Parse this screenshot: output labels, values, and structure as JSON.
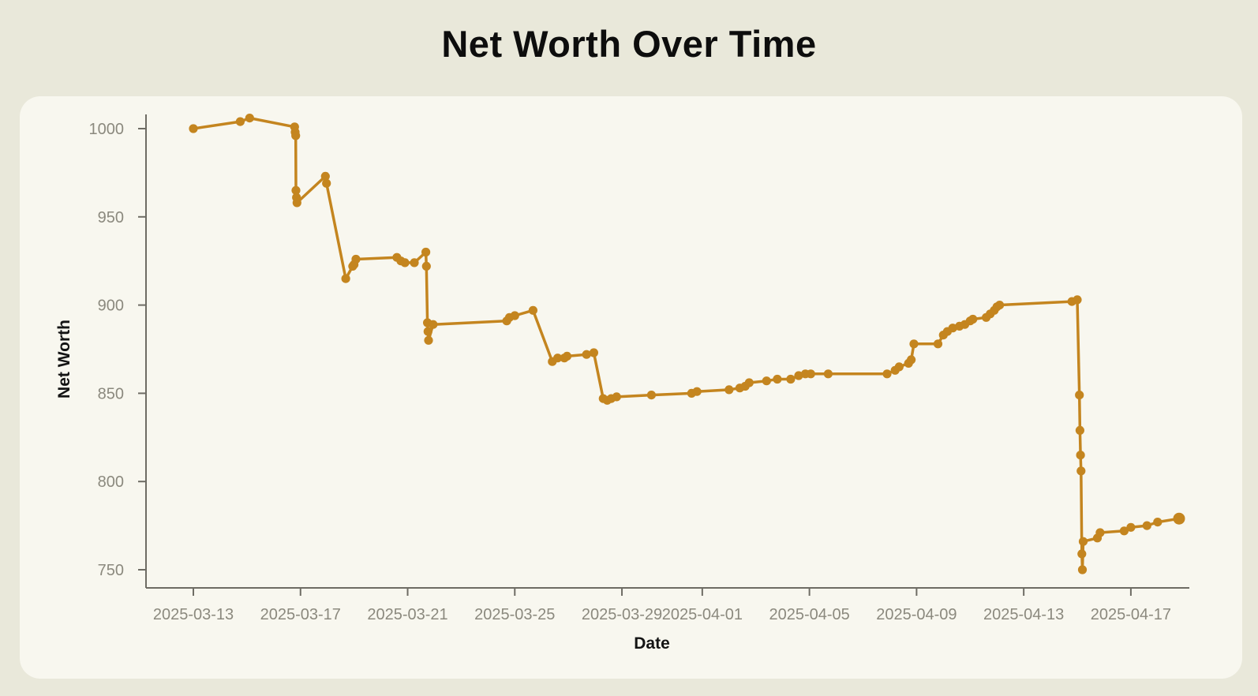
{
  "page": {
    "background_color": "#e9e8da",
    "card_color": "#f8f7ef"
  },
  "chart_data": {
    "type": "line",
    "title": "Net Worth Over Time",
    "xlabel": "Date",
    "ylabel": "Net Worth",
    "line_color": "#c4851f",
    "axis_color": "#6e6c64",
    "tick_label_color": "#8b897e",
    "grid": false,
    "legend": false,
    "ylim": [
      740,
      1012
    ],
    "y_ticks": [
      1000,
      950,
      900,
      850,
      800,
      750
    ],
    "x_ticks": [
      {
        "t": 0,
        "label": "2025-03-13"
      },
      {
        "t": 4,
        "label": "2025-03-17"
      },
      {
        "t": 8,
        "label": "2025-03-21"
      },
      {
        "t": 12,
        "label": "2025-03-25"
      },
      {
        "t": 16,
        "label": "2025-03-29"
      },
      {
        "t": 19,
        "label": "2025-04-01"
      },
      {
        "t": 23,
        "label": "2025-04-05"
      },
      {
        "t": 27,
        "label": "2025-04-09"
      },
      {
        "t": 31,
        "label": "2025-04-13"
      },
      {
        "t": 35,
        "label": "2025-04-17"
      }
    ],
    "x_unit": "days since 2025-03-13",
    "points": [
      [
        0.0,
        1000
      ],
      [
        1.75,
        1004
      ],
      [
        2.1,
        1006
      ],
      [
        3.78,
        1001
      ],
      [
        3.8,
        998
      ],
      [
        3.82,
        996
      ],
      [
        3.83,
        965
      ],
      [
        3.85,
        961
      ],
      [
        3.87,
        958
      ],
      [
        4.93,
        973
      ],
      [
        4.97,
        969
      ],
      [
        5.69,
        915
      ],
      [
        5.95,
        922
      ],
      [
        6.0,
        923
      ],
      [
        6.07,
        926
      ],
      [
        7.6,
        927
      ],
      [
        7.75,
        925
      ],
      [
        7.9,
        924
      ],
      [
        8.25,
        924
      ],
      [
        8.68,
        930
      ],
      [
        8.7,
        922
      ],
      [
        8.74,
        890
      ],
      [
        8.76,
        885
      ],
      [
        8.78,
        880
      ],
      [
        8.95,
        889
      ],
      [
        11.7,
        891
      ],
      [
        11.8,
        893
      ],
      [
        12.0,
        894
      ],
      [
        12.68,
        897
      ],
      [
        13.4,
        868
      ],
      [
        13.6,
        870
      ],
      [
        13.85,
        870
      ],
      [
        13.95,
        871
      ],
      [
        14.68,
        872
      ],
      [
        14.95,
        873
      ],
      [
        15.3,
        847
      ],
      [
        15.45,
        846
      ],
      [
        15.6,
        847
      ],
      [
        15.8,
        848
      ],
      [
        17.1,
        849
      ],
      [
        18.6,
        850
      ],
      [
        18.8,
        851
      ],
      [
        20.0,
        852
      ],
      [
        20.4,
        853
      ],
      [
        20.6,
        854
      ],
      [
        20.75,
        856
      ],
      [
        21.4,
        857
      ],
      [
        21.8,
        858
      ],
      [
        22.3,
        858
      ],
      [
        22.6,
        860
      ],
      [
        22.85,
        861
      ],
      [
        23.05,
        861
      ],
      [
        23.7,
        861
      ],
      [
        25.9,
        861
      ],
      [
        26.2,
        863
      ],
      [
        26.35,
        865
      ],
      [
        26.7,
        867
      ],
      [
        26.8,
        869
      ],
      [
        26.9,
        878
      ],
      [
        27.8,
        878
      ],
      [
        28.0,
        883
      ],
      [
        28.15,
        885
      ],
      [
        28.35,
        887
      ],
      [
        28.6,
        888
      ],
      [
        28.8,
        889
      ],
      [
        29.0,
        891
      ],
      [
        29.1,
        892
      ],
      [
        29.6,
        893
      ],
      [
        29.75,
        895
      ],
      [
        29.9,
        897
      ],
      [
        30.0,
        899
      ],
      [
        30.1,
        900
      ],
      [
        32.8,
        902
      ],
      [
        33.0,
        903
      ],
      [
        33.08,
        849
      ],
      [
        33.1,
        829
      ],
      [
        33.12,
        815
      ],
      [
        33.14,
        806
      ],
      [
        33.17,
        759
      ],
      [
        33.19,
        750
      ],
      [
        33.22,
        766
      ],
      [
        33.75,
        768
      ],
      [
        33.85,
        771
      ],
      [
        34.75,
        772
      ],
      [
        35.0,
        774
      ],
      [
        35.6,
        775
      ],
      [
        36.0,
        777
      ],
      [
        36.8,
        779
      ]
    ]
  }
}
